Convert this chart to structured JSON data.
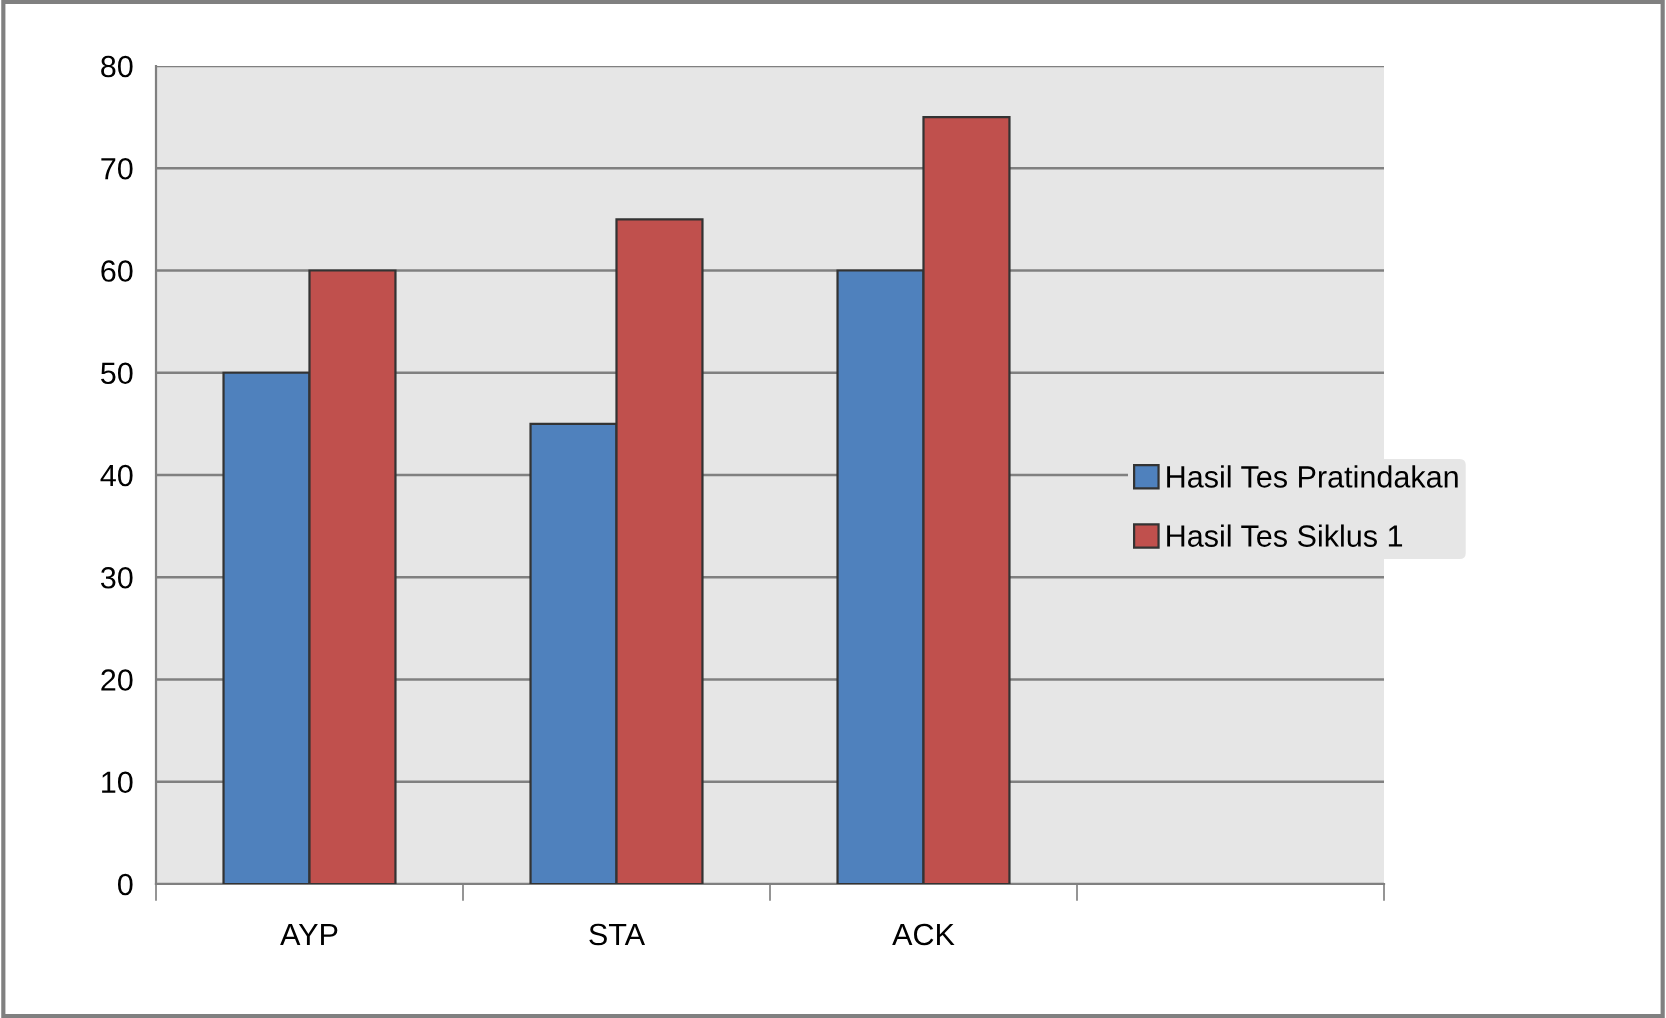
{
  "chart_data": {
    "type": "bar",
    "categories": [
      "AYP",
      "STA",
      "ACK",
      null
    ],
    "series": [
      {
        "name": "Hasil Tes Pratindakan",
        "color": "#4f81bd",
        "values": [
          50,
          45,
          60,
          null
        ]
      },
      {
        "name": "Hasil Tes Siklus 1",
        "color": "#c0504d",
        "values": [
          60,
          65,
          75,
          null
        ]
      }
    ],
    "ylim": [
      0,
      80
    ],
    "yticks": [
      0,
      10,
      20,
      30,
      40,
      50,
      60,
      70,
      80
    ],
    "grid": "y",
    "legend": "right"
  }
}
